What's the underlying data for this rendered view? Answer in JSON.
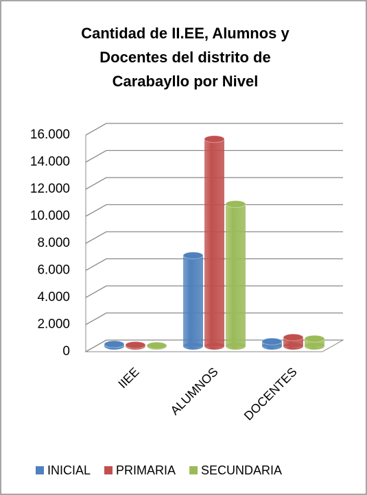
{
  "chart_data": {
    "type": "bar3d",
    "title": [
      "Cantidad de II.EE, Alumnos y",
      "Docentes del distrito de",
      "Carabayllo por Nivel"
    ],
    "categories": [
      "IIEE",
      "ALUMNOS",
      "DOCENTES"
    ],
    "series": [
      {
        "name": "INICIAL",
        "color": "#4f81bd",
        "values": [
          150,
          6700,
          350
        ]
      },
      {
        "name": "PRIMARIA",
        "color": "#c0504d",
        "values": [
          90,
          15300,
          650
        ]
      },
      {
        "name": "SECUNDARIA",
        "color": "#9bbb59",
        "values": [
          50,
          10500,
          550
        ]
      }
    ],
    "ylim": [
      0,
      16000
    ],
    "yticks": [
      0,
      {
        "value": 2000,
        "label": "2.000"
      },
      {
        "value": 4000,
        "label": "4.000"
      },
      {
        "value": 6000,
        "label": "6.000"
      },
      {
        "value": 8000,
        "label": "8.000"
      },
      {
        "value": 10000,
        "label": "10.000"
      },
      {
        "value": 12000,
        "label": "12.000"
      },
      {
        "value": 14000,
        "label": "14.000"
      },
      {
        "value": 16000,
        "label": "16.000"
      }
    ],
    "grid": true,
    "legend": "bottom"
  }
}
